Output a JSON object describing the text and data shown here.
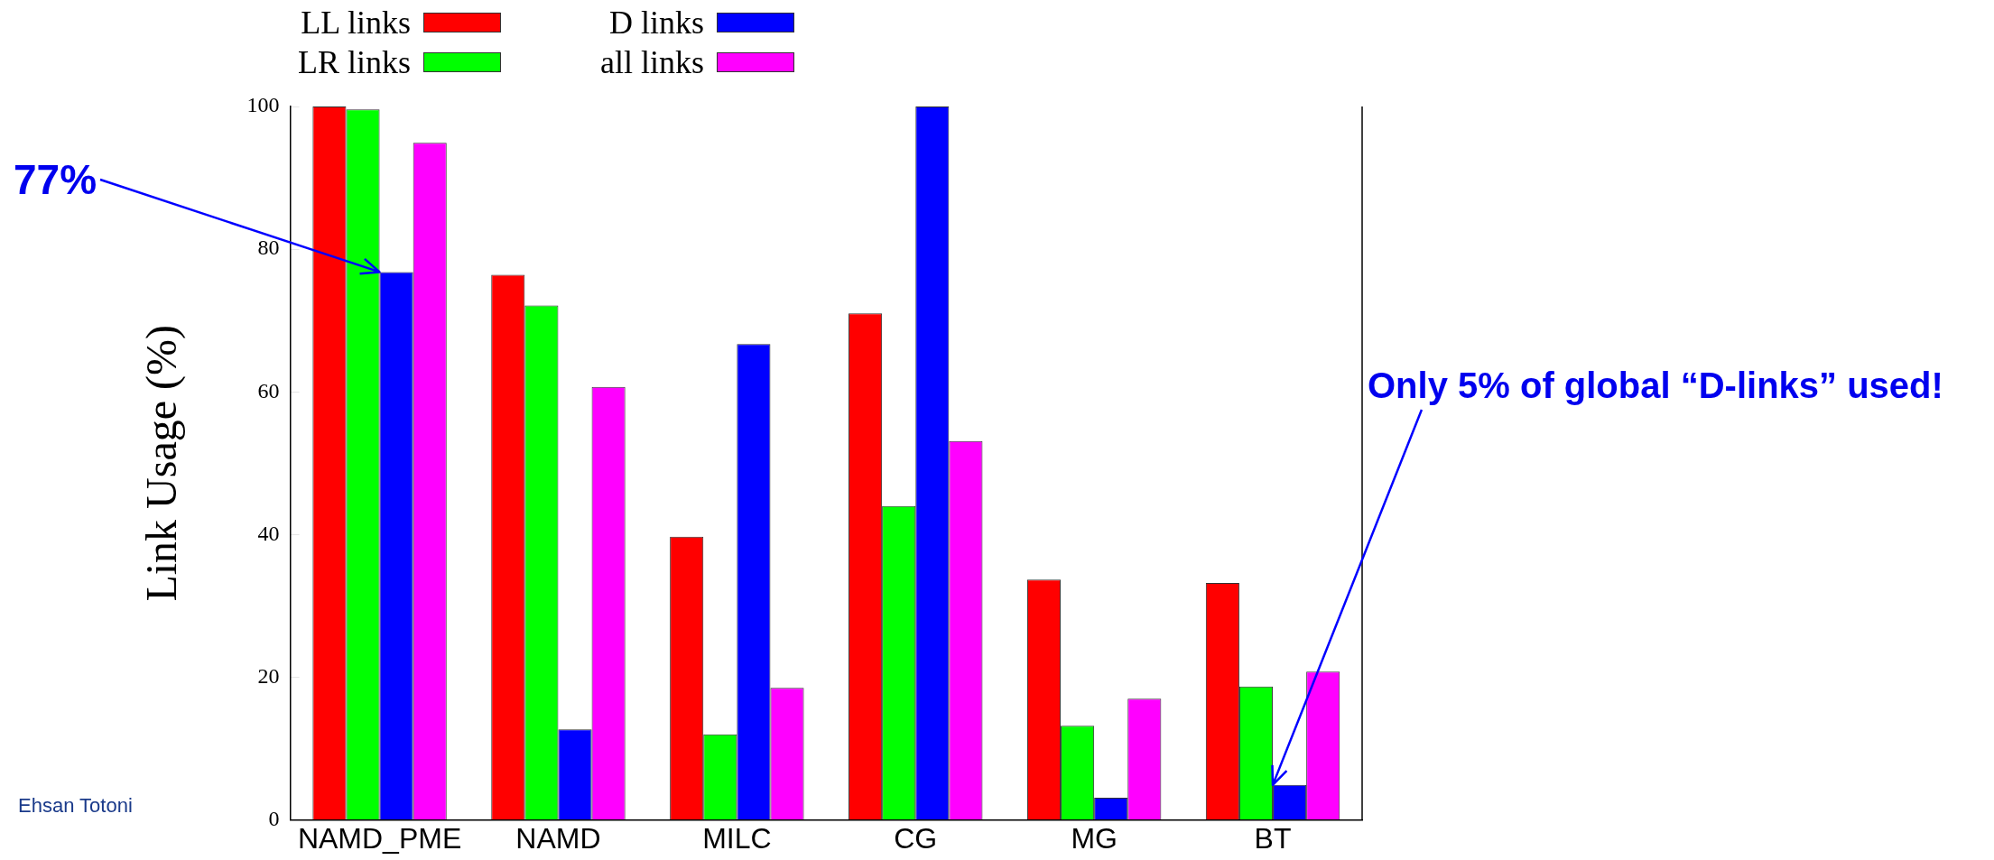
{
  "chart_data": {
    "type": "bar",
    "ylabel": "Link Usage (%)",
    "categories": [
      "NAMD_PME",
      "NAMD",
      "MILC",
      "CG",
      "MG",
      "BT"
    ],
    "series": [
      {
        "name": "LL links",
        "color": "#ff0000",
        "values": [
          100,
          76.4,
          39.7,
          71,
          33.7,
          33.2
        ]
      },
      {
        "name": "LR links",
        "color": "#00ff00",
        "values": [
          99.6,
          72.1,
          12,
          44,
          13.2,
          18.7
        ]
      },
      {
        "name": "D links",
        "color": "#0000ff",
        "values": [
          76.8,
          12.7,
          66.7,
          100,
          3.1,
          4.9
        ]
      },
      {
        "name": "all links",
        "color": "#ff00ff",
        "values": [
          94.9,
          60.7,
          18.5,
          53.1,
          17,
          20.8
        ]
      }
    ],
    "ylim": [
      0,
      100
    ],
    "yticks": [
      0,
      20,
      40,
      60,
      80,
      100
    ],
    "grid": false,
    "legend": "top left",
    "annotations": [
      {
        "text": "77%",
        "x": "NAMD_PME",
        "y": 76.8
      },
      {
        "text": "Only 5% of global “D-links” used!",
        "x": "BT",
        "y": 4.9
      },
      "Ehsan Totoni"
    ]
  }
}
